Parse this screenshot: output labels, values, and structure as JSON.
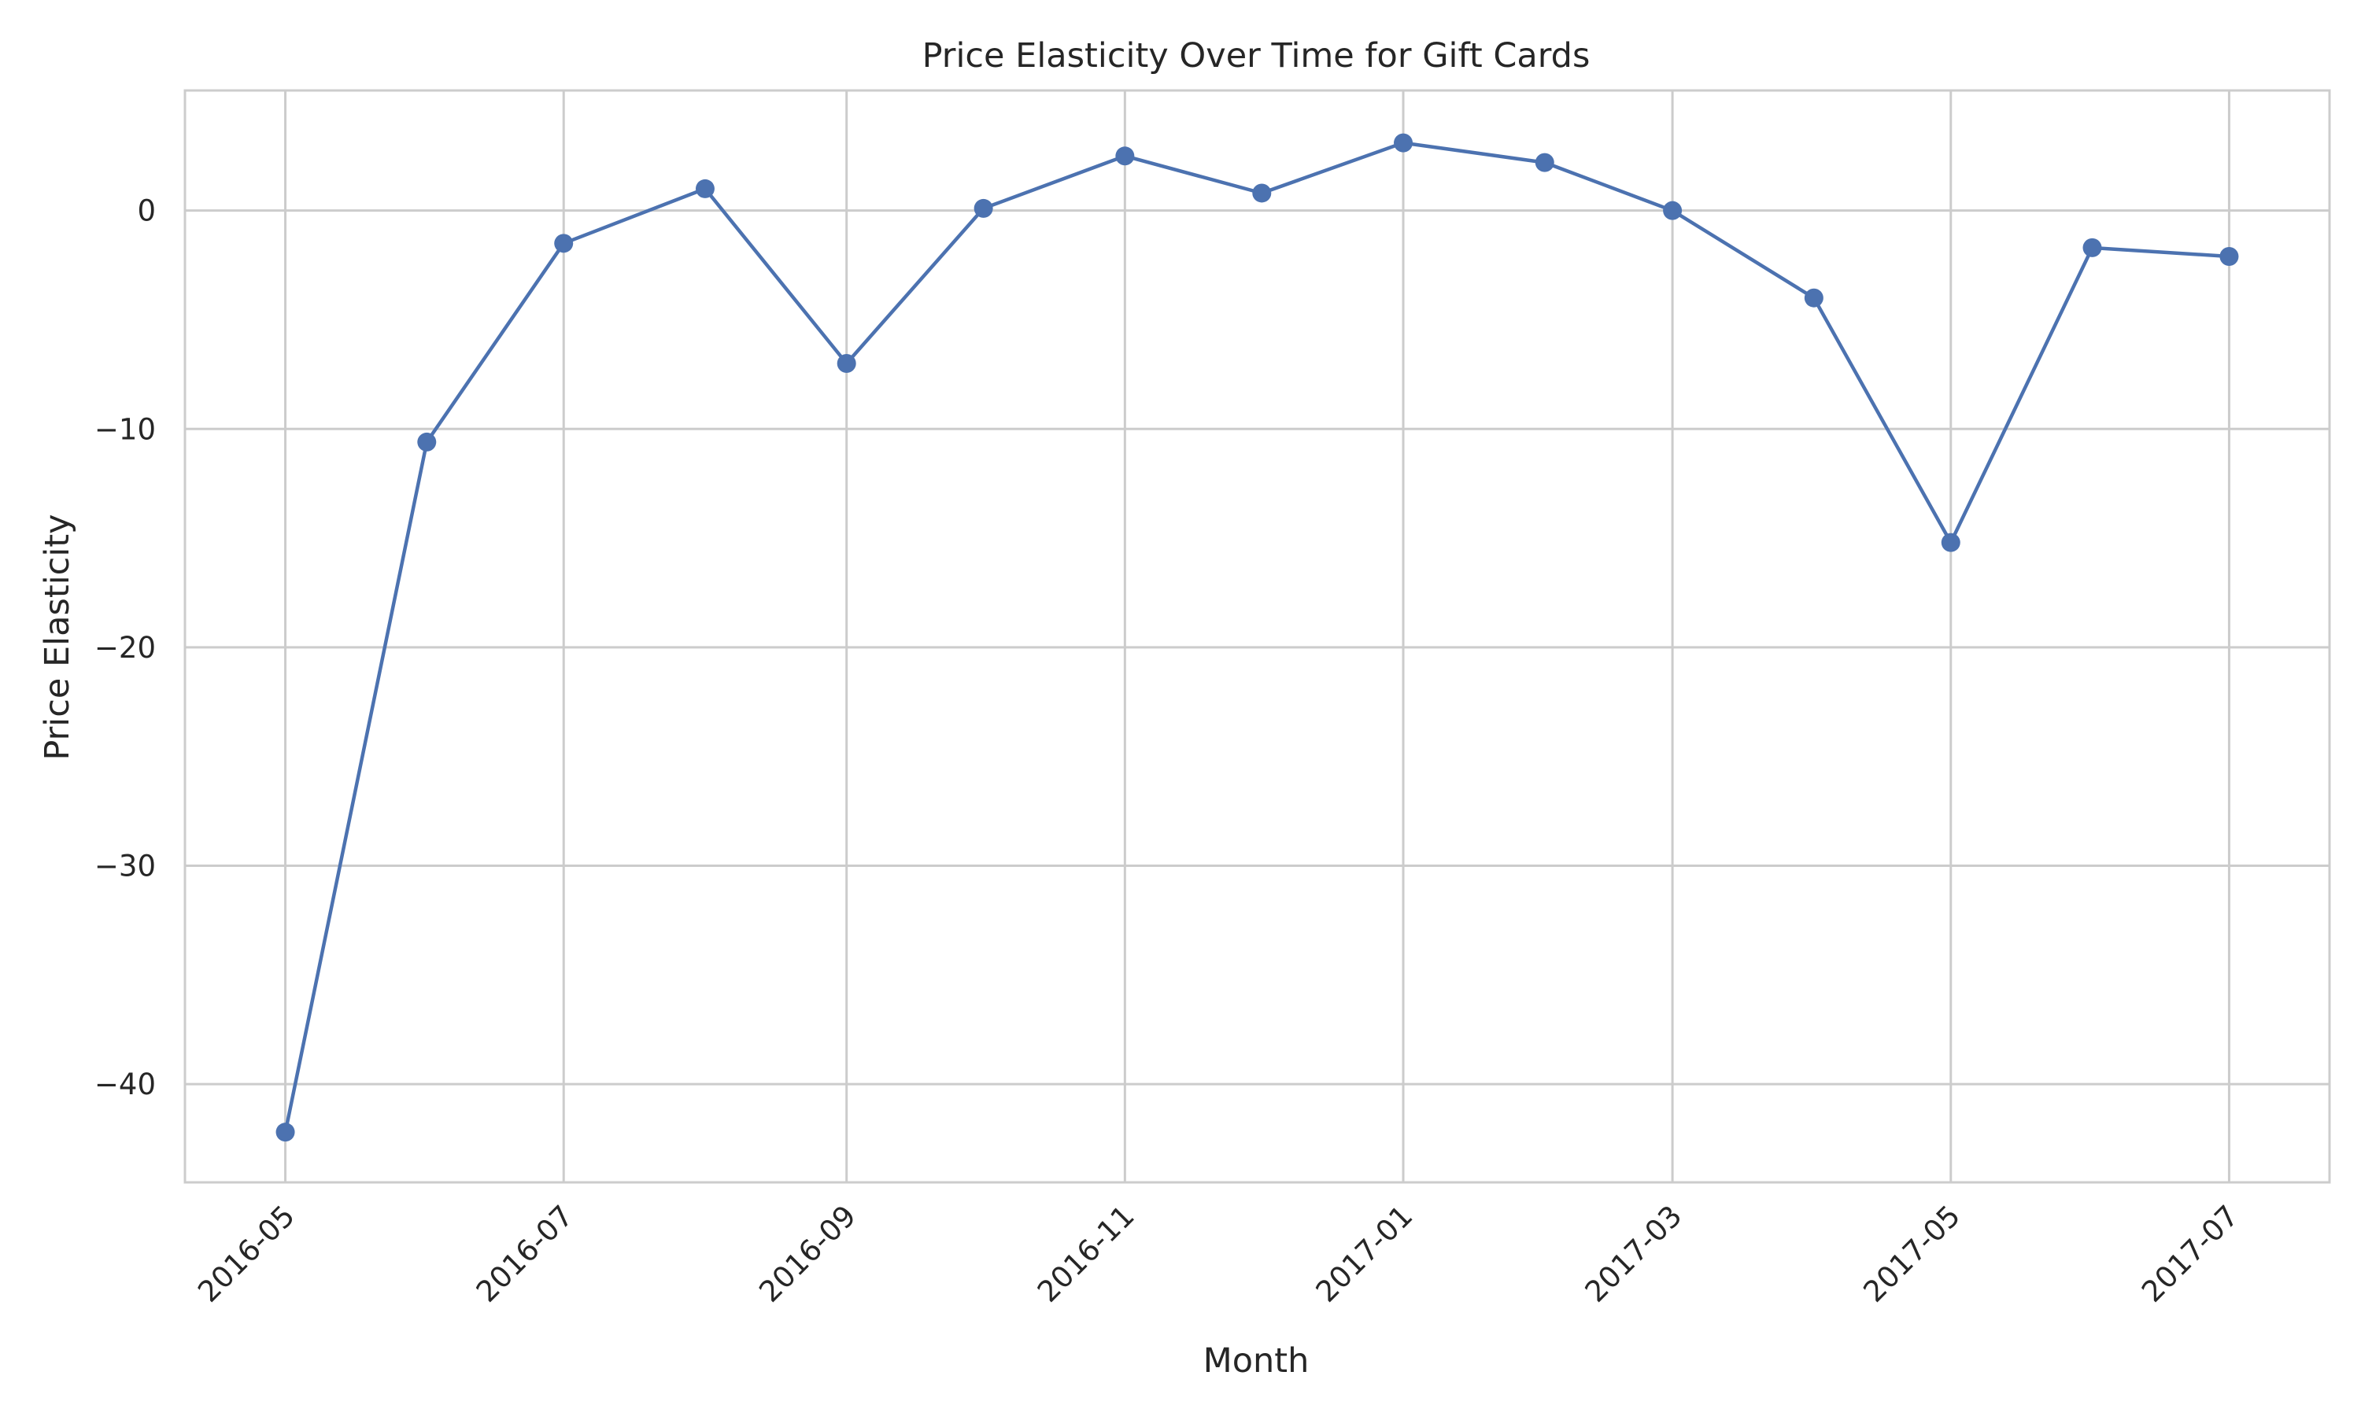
{
  "chart_data": {
    "type": "line",
    "title": "Price Elasticity Over Time for Gift Cards",
    "xlabel": "Month",
    "ylabel": "Price Elasticity",
    "x": [
      "2016-05",
      "2016-06",
      "2016-07",
      "2016-08",
      "2016-09",
      "2016-10",
      "2016-11",
      "2016-12",
      "2017-01",
      "2017-02",
      "2017-03",
      "2017-04",
      "2017-05",
      "2017-06",
      "2017-07"
    ],
    "series": [
      {
        "values": [
          -42.2,
          -10.6,
          -1.5,
          1.0,
          -7.0,
          0.1,
          2.5,
          0.8,
          3.1,
          2.2,
          0.0,
          -4.0,
          -15.2,
          -1.7,
          -2.1
        ]
      }
    ],
    "xticks": [
      "2016-05",
      "2016-07",
      "2016-09",
      "2016-11",
      "2017-01",
      "2017-03",
      "2017-05",
      "2017-07"
    ],
    "yticks": [
      0,
      -10,
      -20,
      -30,
      -40
    ],
    "ytick_labels": [
      "0",
      "−10",
      "−20",
      "−30",
      "−40"
    ],
    "xlim": [
      "2016-04-09",
      "2017-07-23"
    ],
    "ylim": [
      -44.5,
      5.5
    ],
    "grid": true,
    "colors": {
      "line": "#4c72b0",
      "grid": "#cccccc",
      "axes": "#cccccc",
      "text": "#262626"
    }
  }
}
